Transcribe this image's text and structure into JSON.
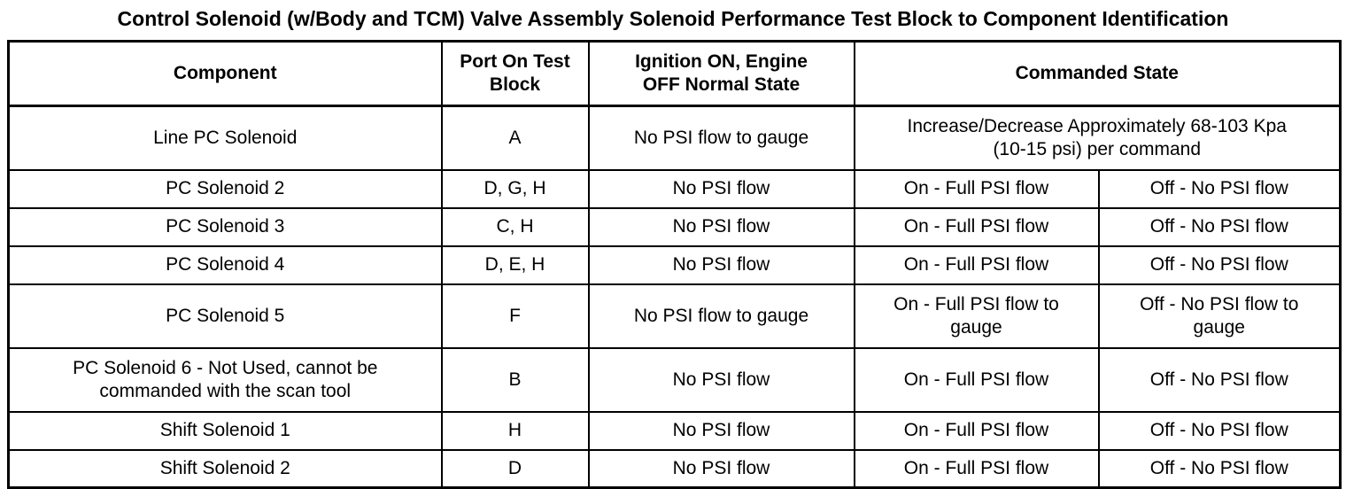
{
  "title": "Control Solenoid (w/Body and TCM) Valve Assembly Solenoid Performance Test Block to Component Identification",
  "colors": {
    "background": "#ffffff",
    "text": "#000000",
    "border": "#000000"
  },
  "table": {
    "headers": {
      "component": "Component",
      "port": "Port On Test\nBlock",
      "normal_state": "Ignition ON, Engine\nOFF Normal State",
      "commanded_state": "Commanded State"
    },
    "rows": [
      {
        "component": "Line PC Solenoid",
        "port": "A",
        "normal_state": "No PSI flow to gauge",
        "commanded": "Increase/Decrease Approximately 68-103 Kpa\n(10-15 psi) per command"
      },
      {
        "component": "PC Solenoid 2",
        "port": "D, G, H",
        "normal_state": "No PSI flow",
        "commanded_on": "On - Full PSI flow",
        "commanded_off": "Off - No PSI flow"
      },
      {
        "component": "PC Solenoid 3",
        "port": "C, H",
        "normal_state": "No PSI flow",
        "commanded_on": "On - Full PSI flow",
        "commanded_off": "Off - No PSI flow"
      },
      {
        "component": "PC Solenoid 4",
        "port": "D, E, H",
        "normal_state": "No PSI flow",
        "commanded_on": "On - Full PSI flow",
        "commanded_off": "Off - No PSI flow"
      },
      {
        "component": "PC Solenoid 5",
        "port": "F",
        "normal_state": "No PSI flow to gauge",
        "commanded_on": "On - Full PSI flow to\ngauge",
        "commanded_off": "Off - No PSI flow to\ngauge"
      },
      {
        "component": "PC Solenoid 6 - Not Used, cannot be\ncommanded with the scan tool",
        "port": "B",
        "normal_state": "No PSI flow",
        "commanded_on": "On - Full PSI flow",
        "commanded_off": "Off - No PSI flow"
      },
      {
        "component": "Shift Solenoid 1",
        "port": "H",
        "normal_state": "No PSI flow",
        "commanded_on": "On - Full PSI flow",
        "commanded_off": "Off - No PSI flow"
      },
      {
        "component": "Shift Solenoid 2",
        "port": "D",
        "normal_state": "No PSI flow",
        "commanded_on": "On - Full PSI flow",
        "commanded_off": "Off - No PSI flow"
      }
    ]
  }
}
